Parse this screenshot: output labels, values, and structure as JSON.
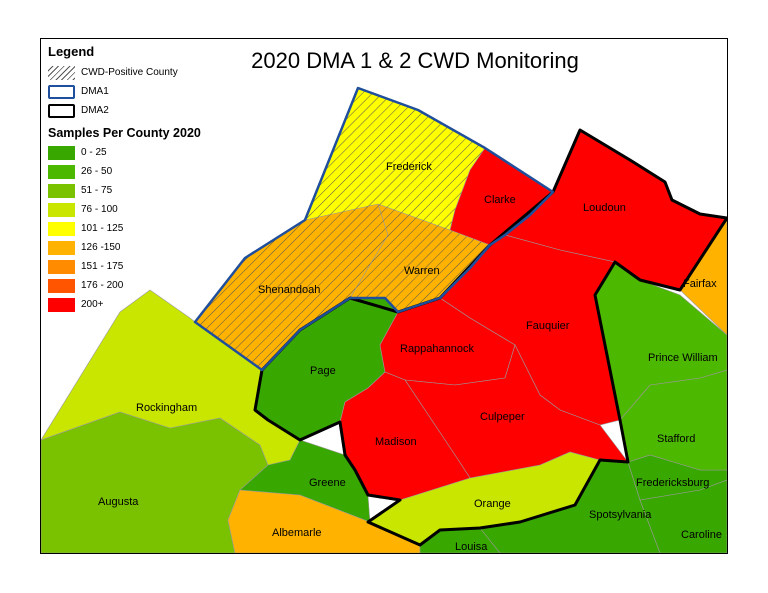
{
  "title": "2020 DMA 1 & 2 CWD Monitoring",
  "legend": {
    "heading": "Legend",
    "cwd_positive": "CWD-Positive County",
    "dma1": "DMA1",
    "dma2": "DMA2",
    "samples_heading": "Samples Per County 2020",
    "classes": [
      {
        "label": "0 - 25",
        "color": "#38a800"
      },
      {
        "label": "26 - 50",
        "color": "#4db800"
      },
      {
        "label": "51 - 75",
        "color": "#7ac200"
      },
      {
        "label": "76 - 100",
        "color": "#c8e600"
      },
      {
        "label": "101 - 125",
        "color": "#ffff00"
      },
      {
        "label": "126  -150",
        "color": "#ffb300"
      },
      {
        "label": "151 - 175",
        "color": "#ff8c00"
      },
      {
        "label": "176 - 200",
        "color": "#ff5500"
      },
      {
        "label": "200+",
        "color": "#ff0000"
      }
    ]
  },
  "colors": {
    "dma1_outline": "#1f4e9c",
    "dma2_outline": "#000000",
    "hatch": "#555555"
  },
  "counties": {
    "frederick": "Frederick",
    "clarke": "Clarke",
    "loudoun": "Loudoun",
    "shenandoah": "Shenandoah",
    "warren": "Warren",
    "fairfax": "Fairfax",
    "fauquier": "Fauquier",
    "rappahannock": "Rappahannock",
    "page": "Page",
    "prince_william": "Prince William",
    "rockingham": "Rockingham",
    "culpeper": "Culpeper",
    "stafford": "Stafford",
    "madison": "Madison",
    "greene": "Greene",
    "fredericksburg": "Fredericksburg",
    "augusta": "Augusta",
    "orange": "Orange",
    "spotsylvania": "Spotsylvania",
    "albemarle": "Albemarle",
    "caroline": "Caroline",
    "louisa": "Louisa"
  }
}
